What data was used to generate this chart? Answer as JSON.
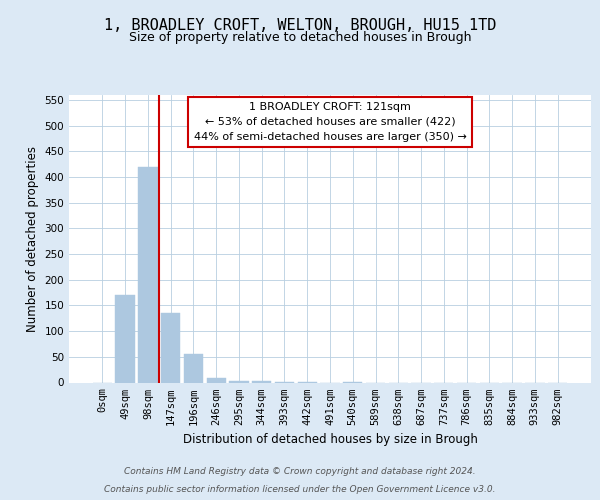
{
  "title": "1, BROADLEY CROFT, WELTON, BROUGH, HU15 1TD",
  "subtitle": "Size of property relative to detached houses in Brough",
  "xlabel": "Distribution of detached houses by size in Brough",
  "ylabel": "Number of detached properties",
  "footnote1": "Contains HM Land Registry data © Crown copyright and database right 2024.",
  "footnote2": "Contains public sector information licensed under the Open Government Licence v3.0.",
  "bin_labels": [
    "0sqm",
    "49sqm",
    "98sqm",
    "147sqm",
    "196sqm",
    "246sqm",
    "295sqm",
    "344sqm",
    "393sqm",
    "442sqm",
    "491sqm",
    "540sqm",
    "589sqm",
    "638sqm",
    "687sqm",
    "737sqm",
    "786sqm",
    "835sqm",
    "884sqm",
    "933sqm",
    "982sqm"
  ],
  "bar_values": [
    0,
    170,
    420,
    135,
    55,
    8,
    3,
    2,
    1,
    1,
    0,
    1,
    0,
    0,
    0,
    0,
    0,
    0,
    0,
    0,
    0
  ],
  "bar_color": "#adc8e0",
  "bar_edge_color": "#adc8e0",
  "property_line_color": "#cc0000",
  "property_line_bin": 2.47,
  "annotation_text": "1 BROADLEY CROFT: 121sqm\n← 53% of detached houses are smaller (422)\n44% of semi-detached houses are larger (350) →",
  "annotation_box_color": "#ffffff",
  "annotation_box_edge": "#cc0000",
  "ylim": [
    0,
    560
  ],
  "yticks": [
    0,
    50,
    100,
    150,
    200,
    250,
    300,
    350,
    400,
    450,
    500,
    550
  ],
  "background_color": "#dce9f5",
  "plot_background": "#ffffff",
  "grid_color": "#b8cfe0",
  "title_fontsize": 11,
  "subtitle_fontsize": 9,
  "axis_label_fontsize": 8.5,
  "tick_fontsize": 7.5,
  "annotation_fontsize": 8,
  "footnote_fontsize": 6.5
}
